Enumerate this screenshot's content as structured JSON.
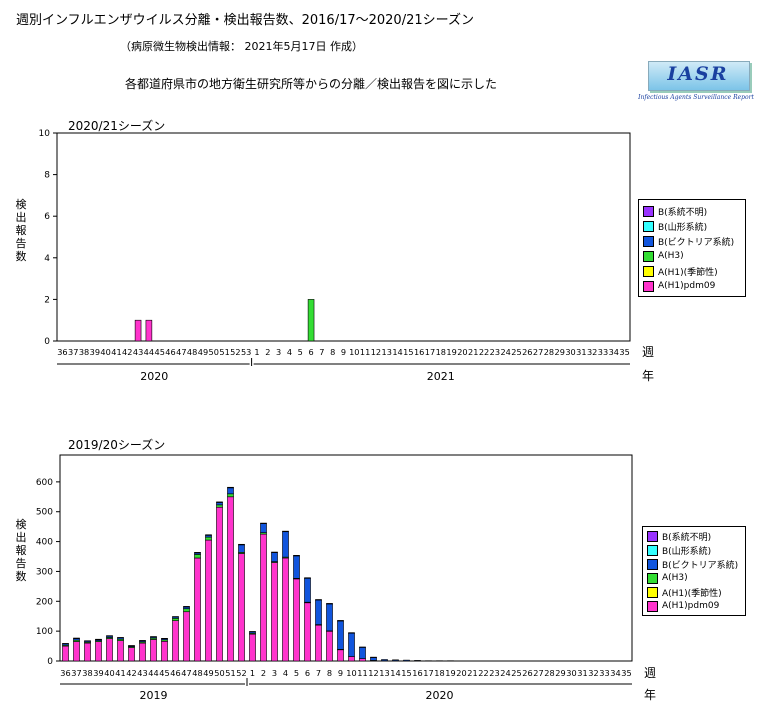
{
  "header": {
    "title": "週別インフルエンザウイルス分離・検出報告数、2016/17～2020/21シーズン",
    "subtitle": "（病原微生物検出情報： 2021年5月17日 作成）",
    "description": "各都道府県市の地方衛生研究所等からの分離／検出報告を図に示した"
  },
  "logo": {
    "text": "IASR",
    "tagline": "Infectious Agents Surveillance Report"
  },
  "legend": {
    "items": [
      {
        "label": "B(系統不明)",
        "color": "#9933ff"
      },
      {
        "label": "B(山形系統)",
        "color": "#33ffff"
      },
      {
        "label": "B(ビクトリア系統)",
        "color": "#1155dd"
      },
      {
        "label": "A(H3)",
        "color": "#33dd33"
      },
      {
        "label": "A(H1)(季節性)",
        "color": "#ffff00"
      },
      {
        "label": "A(H1)pdm09",
        "color": "#ff33cc"
      }
    ]
  },
  "chart_data": [
    {
      "type": "bar",
      "stacked": true,
      "title": "2020/21シーズン",
      "ylabel": "検出報告数",
      "xlabel": "週",
      "year_axis_label": "年",
      "years": [
        "2020",
        "2021"
      ],
      "ylim": [
        0,
        10
      ],
      "yticks": [
        0,
        2,
        4,
        6,
        8,
        10
      ],
      "categories": [
        "36",
        "37",
        "38",
        "39",
        "40",
        "41",
        "42",
        "43",
        "44",
        "45",
        "46",
        "47",
        "48",
        "49",
        "50",
        "51",
        "52",
        "53",
        "1",
        "2",
        "3",
        "4",
        "5",
        "6",
        "7",
        "8",
        "9",
        "10",
        "11",
        "12",
        "13",
        "14",
        "15",
        "16",
        "17",
        "18",
        "19",
        "20",
        "21",
        "22",
        "23",
        "24",
        "25",
        "26",
        "27",
        "28",
        "29",
        "30",
        "31",
        "32",
        "33",
        "34",
        "35"
      ],
      "series": [
        {
          "name": "A(H1)pdm09",
          "color": "#ff33cc",
          "values": [
            0,
            0,
            0,
            0,
            0,
            0,
            0,
            1,
            1,
            0,
            0,
            0,
            0,
            0,
            0,
            0,
            0,
            0,
            0,
            0,
            0,
            0,
            0,
            0,
            0,
            0,
            0,
            0,
            0,
            0,
            0,
            0,
            0,
            0,
            0,
            0,
            0,
            0,
            0,
            0,
            0,
            0,
            0,
            0,
            0,
            0,
            0,
            0,
            0,
            0,
            0,
            0,
            0
          ]
        },
        {
          "name": "A(H1)(季節性)",
          "color": "#ffff00",
          "values": [
            0,
            0,
            0,
            0,
            0,
            0,
            0,
            0,
            0,
            0,
            0,
            0,
            0,
            0,
            0,
            0,
            0,
            0,
            0,
            0,
            0,
            0,
            0,
            0,
            0,
            0,
            0,
            0,
            0,
            0,
            0,
            0,
            0,
            0,
            0,
            0,
            0,
            0,
            0,
            0,
            0,
            0,
            0,
            0,
            0,
            0,
            0,
            0,
            0,
            0,
            0,
            0,
            0
          ]
        },
        {
          "name": "A(H3)",
          "color": "#33dd33",
          "values": [
            0,
            0,
            0,
            0,
            0,
            0,
            0,
            0,
            0,
            0,
            0,
            0,
            0,
            0,
            0,
            0,
            0,
            0,
            0,
            0,
            0,
            0,
            0,
            2,
            0,
            0,
            0,
            0,
            0,
            0,
            0,
            0,
            0,
            0,
            0,
            0,
            0,
            0,
            0,
            0,
            0,
            0,
            0,
            0,
            0,
            0,
            0,
            0,
            0,
            0,
            0,
            0,
            0
          ]
        },
        {
          "name": "B(ビクトリア系統)",
          "color": "#1155dd",
          "values": [
            0,
            0,
            0,
            0,
            0,
            0,
            0,
            0,
            0,
            0,
            0,
            0,
            0,
            0,
            0,
            0,
            0,
            0,
            0,
            0,
            0,
            0,
            0,
            0,
            0,
            0,
            0,
            0,
            0,
            0,
            0,
            0,
            0,
            0,
            0,
            0,
            0,
            0,
            0,
            0,
            0,
            0,
            0,
            0,
            0,
            0,
            0,
            0,
            0,
            0,
            0,
            0,
            0
          ]
        },
        {
          "name": "B(山形系統)",
          "color": "#33ffff",
          "values": [
            0,
            0,
            0,
            0,
            0,
            0,
            0,
            0,
            0,
            0,
            0,
            0,
            0,
            0,
            0,
            0,
            0,
            0,
            0,
            0,
            0,
            0,
            0,
            0,
            0,
            0,
            0,
            0,
            0,
            0,
            0,
            0,
            0,
            0,
            0,
            0,
            0,
            0,
            0,
            0,
            0,
            0,
            0,
            0,
            0,
            0,
            0,
            0,
            0,
            0,
            0,
            0,
            0
          ]
        },
        {
          "name": "B(系統不明)",
          "color": "#9933ff",
          "values": [
            0,
            0,
            0,
            0,
            0,
            0,
            0,
            0,
            0,
            0,
            0,
            0,
            0,
            0,
            0,
            0,
            0,
            0,
            0,
            0,
            0,
            0,
            0,
            0,
            0,
            0,
            0,
            0,
            0,
            0,
            0,
            0,
            0,
            0,
            0,
            0,
            0,
            0,
            0,
            0,
            0,
            0,
            0,
            0,
            0,
            0,
            0,
            0,
            0,
            0,
            0,
            0,
            0
          ]
        }
      ]
    },
    {
      "type": "bar",
      "stacked": true,
      "title": "2019/20シーズン",
      "ylabel": "検出報告数",
      "xlabel": "週",
      "year_axis_label": "年",
      "years": [
        "2019",
        "2020"
      ],
      "ylim": [
        0,
        690
      ],
      "yticks": [
        0,
        100,
        200,
        300,
        400,
        500,
        600
      ],
      "categories": [
        "36",
        "37",
        "38",
        "39",
        "40",
        "41",
        "42",
        "43",
        "44",
        "45",
        "46",
        "47",
        "48",
        "49",
        "50",
        "51",
        "52",
        "1",
        "2",
        "3",
        "4",
        "5",
        "6",
        "7",
        "8",
        "9",
        "10",
        "11",
        "12",
        "13",
        "14",
        "15",
        "16",
        "17",
        "18",
        "19",
        "20",
        "21",
        "22",
        "23",
        "24",
        "25",
        "26",
        "27",
        "28",
        "29",
        "30",
        "31",
        "32",
        "33",
        "34",
        "35"
      ],
      "series": [
        {
          "name": "A(H1)pdm09",
          "color": "#ff33cc",
          "values": [
            50,
            65,
            60,
            65,
            75,
            68,
            45,
            60,
            72,
            66,
            135,
            165,
            345,
            405,
            515,
            550,
            360,
            90,
            425,
            330,
            345,
            275,
            195,
            120,
            100,
            38,
            15,
            8,
            2,
            1,
            1,
            0,
            0,
            0,
            0,
            0,
            0,
            0,
            0,
            0,
            0,
            0,
            0,
            0,
            0,
            0,
            0,
            0,
            0,
            0,
            0,
            0
          ]
        },
        {
          "name": "A(H1)(季節性)",
          "color": "#ffff00",
          "values": [
            0,
            0,
            0,
            0,
            0,
            0,
            0,
            0,
            0,
            0,
            0,
            0,
            0,
            0,
            0,
            0,
            0,
            0,
            0,
            0,
            0,
            0,
            0,
            0,
            0,
            0,
            0,
            0,
            0,
            0,
            0,
            0,
            0,
            0,
            0,
            0,
            0,
            0,
            0,
            0,
            0,
            0,
            0,
            0,
            0,
            0,
            0,
            0,
            0,
            0,
            0,
            0
          ]
        },
        {
          "name": "A(H3)",
          "color": "#33dd33",
          "values": [
            3,
            5,
            3,
            3,
            4,
            5,
            3,
            4,
            5,
            5,
            8,
            10,
            12,
            10,
            8,
            10,
            4,
            3,
            5,
            3,
            3,
            2,
            2,
            2,
            1,
            1,
            0,
            0,
            0,
            0,
            0,
            0,
            0,
            0,
            0,
            0,
            0,
            0,
            0,
            0,
            0,
            0,
            0,
            0,
            0,
            0,
            0,
            0,
            0,
            0,
            0,
            0
          ]
        },
        {
          "name": "B(ビクトリア系統)",
          "color": "#1155dd",
          "values": [
            5,
            5,
            4,
            4,
            5,
            5,
            3,
            4,
            4,
            4,
            5,
            6,
            5,
            6,
            8,
            20,
            25,
            5,
            30,
            30,
            85,
            75,
            80,
            82,
            90,
            95,
            78,
            38,
            10,
            4,
            3,
            3,
            2,
            1,
            1,
            1,
            0,
            0,
            0,
            0,
            0,
            0,
            0,
            0,
            0,
            0,
            0,
            0,
            0,
            0,
            0,
            0
          ]
        },
        {
          "name": "B(山形系統)",
          "color": "#33ffff",
          "values": [
            0,
            0,
            0,
            0,
            0,
            0,
            0,
            0,
            0,
            0,
            0,
            0,
            0,
            0,
            0,
            0,
            0,
            0,
            0,
            0,
            0,
            0,
            0,
            0,
            0,
            0,
            0,
            0,
            0,
            0,
            0,
            0,
            0,
            0,
            0,
            0,
            0,
            0,
            0,
            0,
            0,
            0,
            0,
            0,
            0,
            0,
            0,
            0,
            0,
            0,
            0,
            0
          ]
        },
        {
          "name": "B(系統不明)",
          "color": "#9933ff",
          "values": [
            1,
            2,
            1,
            1,
            1,
            1,
            1,
            1,
            1,
            1,
            1,
            2,
            2,
            2,
            2,
            2,
            2,
            1,
            2,
            2,
            2,
            2,
            2,
            2,
            2,
            2,
            2,
            1,
            1,
            0,
            0,
            0,
            0,
            0,
            0,
            0,
            0,
            0,
            0,
            0,
            0,
            0,
            0,
            0,
            0,
            0,
            0,
            0,
            0,
            0,
            0,
            0
          ]
        }
      ]
    }
  ]
}
